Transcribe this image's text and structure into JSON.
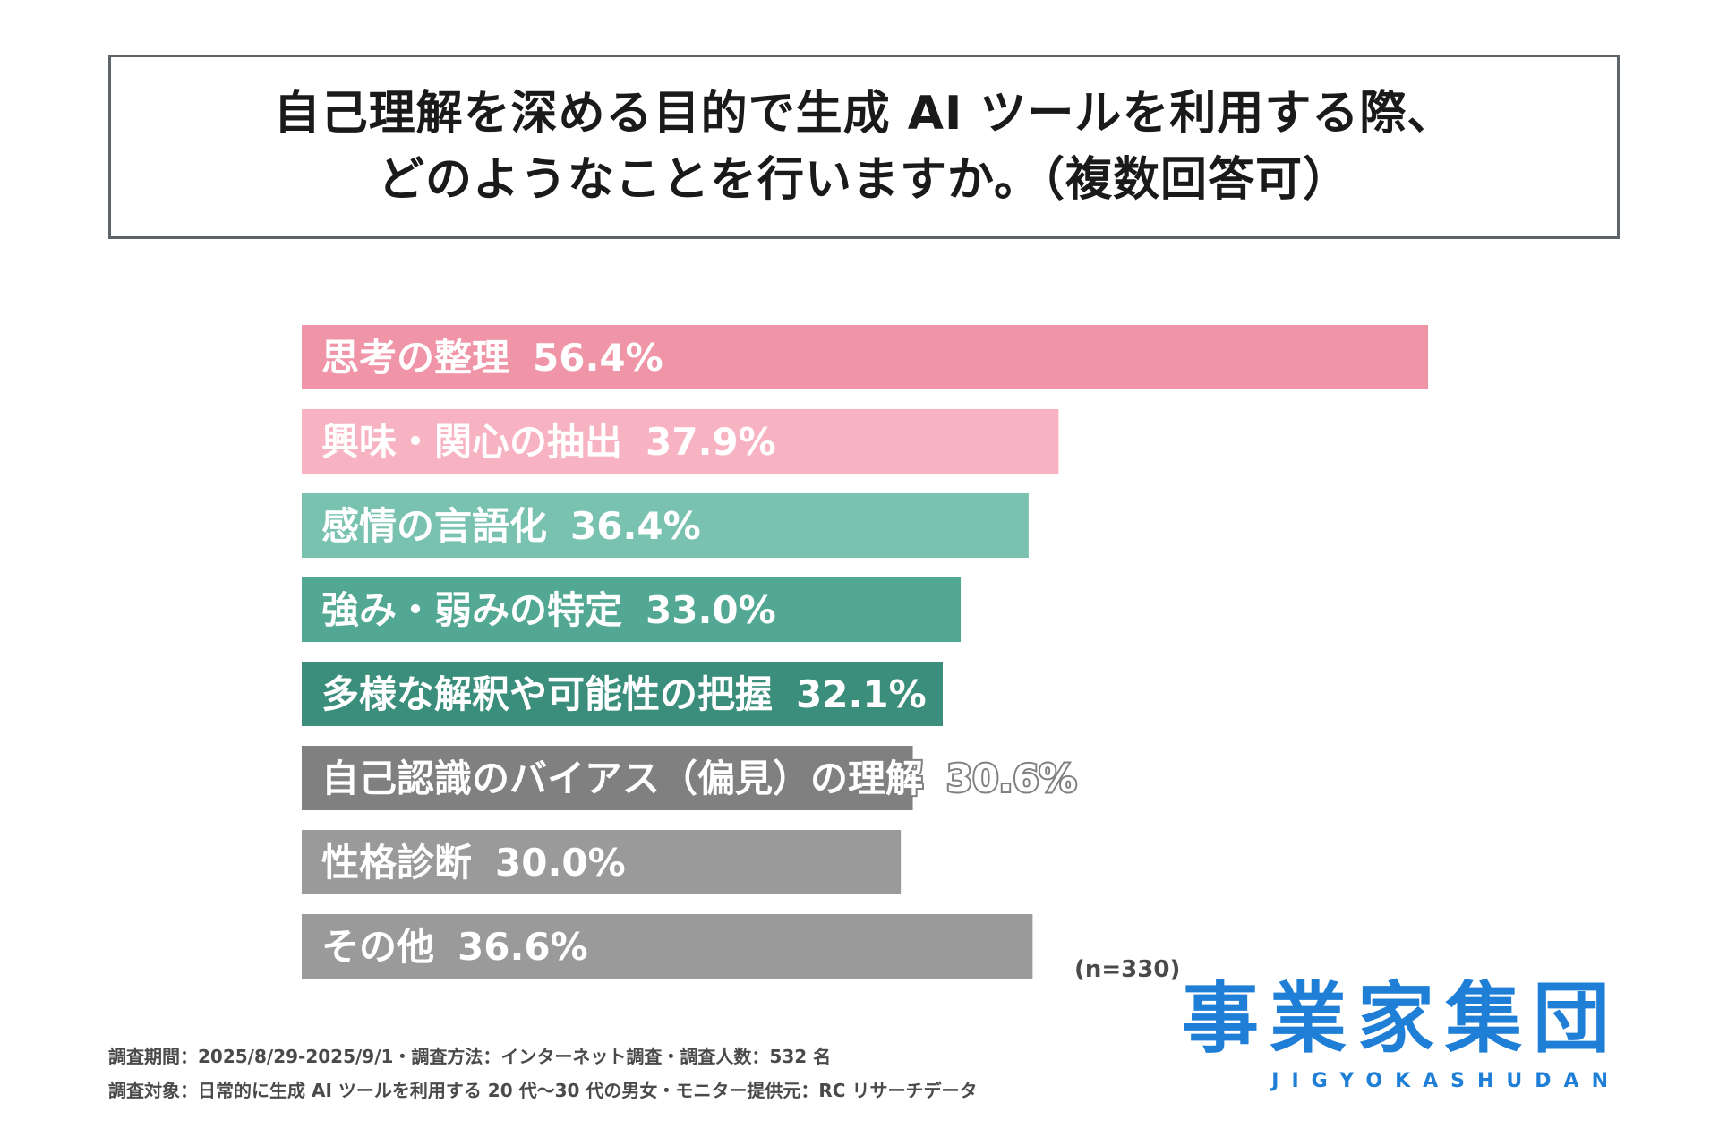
{
  "header": {
    "title_line1": "自己理解を深める目的で生成 AI ツールを利用する際、",
    "title_line2": "どのようなことを行いますか。（複数回答可）"
  },
  "chart_data": {
    "type": "bar",
    "orientation": "horizontal",
    "categories": [
      "思考の整理",
      "興味・関心の抽出",
      "感情の言語化",
      "強み・弱みの特定",
      "多様な解釈や可能性の把握",
      "自己認識のバイアス（偏見）の理解",
      "性格診断",
      "その他"
    ],
    "values": [
      56.4,
      37.9,
      36.4,
      33.0,
      32.1,
      30.6,
      30.0,
      36.6
    ],
    "value_labels": [
      "56.4%",
      "37.9%",
      "36.4%",
      "33.0%",
      "32.1%",
      "30.6%",
      "30.0%",
      "36.6%"
    ],
    "colors": [
      "#f095a7",
      "#f7b3c2",
      "#7ac2b0",
      "#52a893",
      "#3a8e7b",
      "#808080",
      "#9a9a9a",
      "#9a9a9a"
    ],
    "unit": "%",
    "xlim": [
      0,
      56.4
    ]
  },
  "sample_note": "(n=330)",
  "footnotes": {
    "line1": "調査期間：2025/8/29-2025/9/1・調査方法：インターネット調査・調査人数：532 名",
    "line2": "調査対象：日常的に生成 AI ツールを利用する 20 代〜30 代の男女・モニター提供元：RC リサーチデータ"
  },
  "logo": {
    "kanji": "事業家集団",
    "roman": "JIGYOKASHUDAN",
    "color": "#1f7fd6"
  }
}
